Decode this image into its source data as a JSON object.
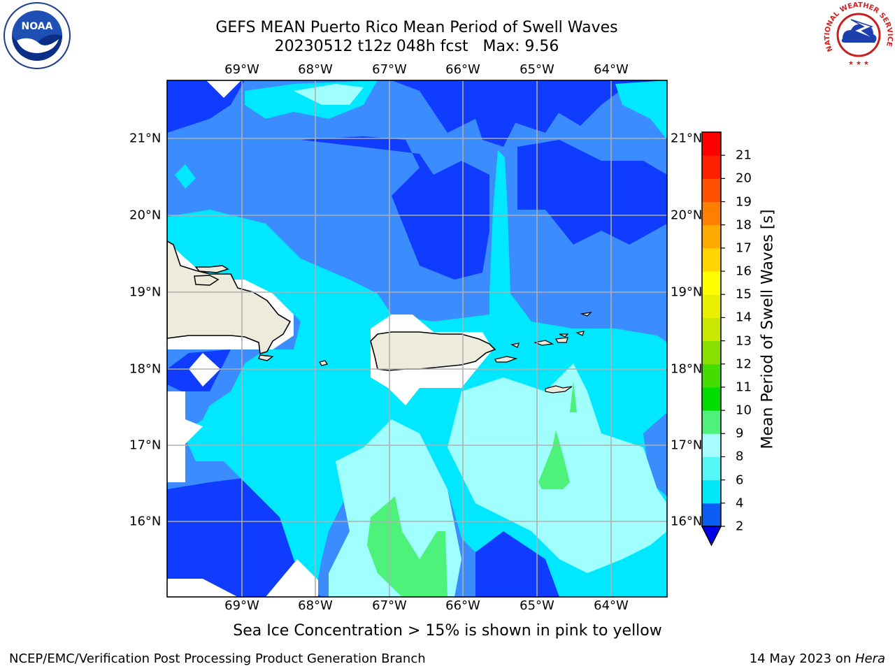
{
  "title": {
    "line1": "GEFS MEAN Puerto Rico Mean Period of Swell Waves",
    "line2": "20230512 t12z 048h fcst   Max: 9.56"
  },
  "logos": {
    "left": {
      "text": "NOAA",
      "icon": "noaa-logo-icon"
    },
    "right": {
      "text": "NATIONAL WEATHER SERVICE",
      "icon": "nws-logo-icon"
    }
  },
  "map": {
    "lon_labels": [
      "69°W",
      "68°W",
      "67°W",
      "66°W",
      "65°W",
      "64°W"
    ],
    "lat_labels": [
      "21°N",
      "20°N",
      "19°N",
      "18°N",
      "17°N",
      "16°N"
    ],
    "lon_range": [
      -70.0,
      -63.25
    ],
    "lat_range": [
      15.0,
      21.75
    ],
    "grid": true,
    "colors": {
      "level_2_4": "#0f3cff",
      "level_4_6": "#3a8cff",
      "level_6_8": "#00e8ff",
      "level_8_9": "#a0ffff",
      "level_9_10": "#4df27a",
      "land": "#ecebdc",
      "below_min": "#0000e8"
    }
  },
  "colorbar": {
    "ticks": [
      "2",
      "4",
      "6",
      "8",
      "9",
      "10",
      "11",
      "12",
      "13",
      "14",
      "15",
      "16",
      "17",
      "18",
      "19",
      "20",
      "21"
    ],
    "colors": [
      "#0a5cf5",
      "#00e8f8",
      "#55f6f6",
      "#a8fcff",
      "#4ef27a",
      "#00dd00",
      "#44dd00",
      "#88e000",
      "#c8e800",
      "#e8f000",
      "#ffff00",
      "#ffd400",
      "#ffaa00",
      "#ff8000",
      "#ff5000",
      "#ff2000",
      "#ff0000"
    ],
    "extend_color": "#0000e8",
    "label": "Mean Period of Swell Waves [s]"
  },
  "footer": {
    "note": "Sea Ice Concentration > 15% is shown in pink to yellow",
    "left": "NCEP/EMC/Verification Post Processing Product Generation Branch",
    "date": "14 May 2023 on ",
    "machine": "Hera"
  }
}
